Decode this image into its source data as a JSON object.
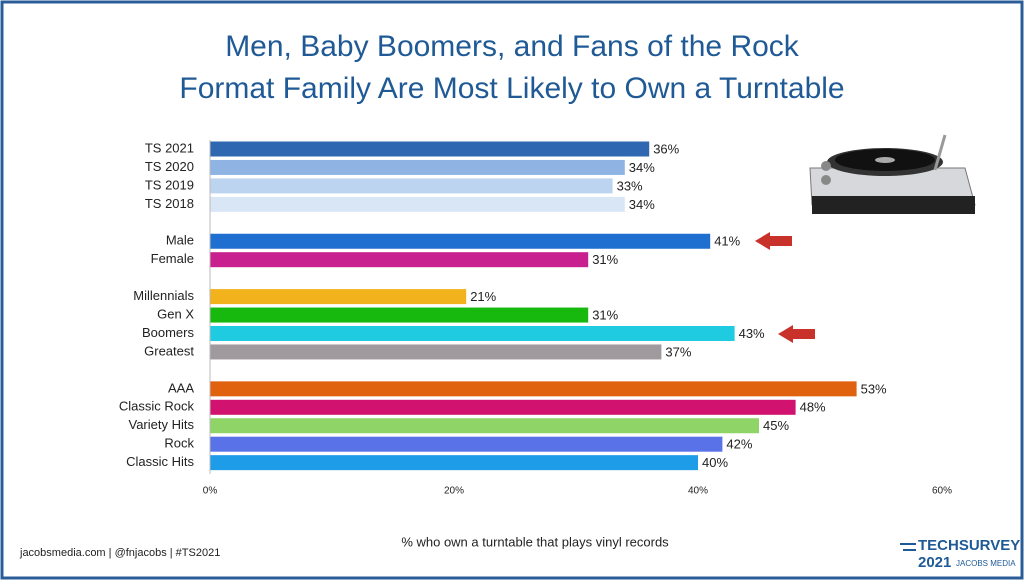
{
  "chart_data": {
    "type": "hbar",
    "title": [
      "Men, Baby Boomers, and Fans of the Rock",
      "Format Family Are Most Likely to Own a Turntable"
    ],
    "categories": [
      "TS 2021",
      "TS 2020",
      "TS 2019",
      "TS 2018",
      null,
      "Male",
      "Female",
      null,
      "Millennials",
      "Gen X",
      "Boomers",
      "Greatest",
      null,
      "AAA",
      "Classic Rock",
      "Variety Hits",
      "Rock",
      "Classic Hits"
    ],
    "values": [
      36,
      34,
      33,
      34,
      null,
      41,
      31,
      null,
      21,
      31,
      43,
      37,
      null,
      53,
      48,
      45,
      42,
      40
    ],
    "value_labels": [
      "36%",
      "34%",
      "33%",
      "34%",
      null,
      "41%",
      "31%",
      null,
      "21%",
      "31%",
      "43%",
      "37%",
      null,
      "53%",
      "48%",
      "45%",
      "42%",
      "40%"
    ],
    "colors": [
      "#2f67b0",
      "#8fb4e3",
      "#bdd4f0",
      "#d9e6f6",
      null,
      "#1f6fd1",
      "#c8208e",
      null,
      "#f2b21b",
      "#17b90f",
      "#1fcbe0",
      "#a09a9e",
      null,
      "#e0620f",
      "#d1126f",
      "#8fd466",
      "#5a72e8",
      "#1e9ce8"
    ],
    "xlim": [
      0,
      60
    ],
    "xticks": [
      {
        "value": 0,
        "label": "0%"
      },
      {
        "value": 20,
        "label": "20%"
      },
      {
        "value": 40,
        "label": "40%"
      },
      {
        "value": 60,
        "label": "60%"
      }
    ],
    "xlabel": "% who own a turntable that plays vinyl records"
  },
  "footer": {
    "text": "jacobsmedia.com  |  @fnjacobs  |  #TS2021",
    "logo_main": "TECHSURVEY",
    "logo_year": "2021",
    "logo_sub": "JACOBS MEDIA"
  }
}
